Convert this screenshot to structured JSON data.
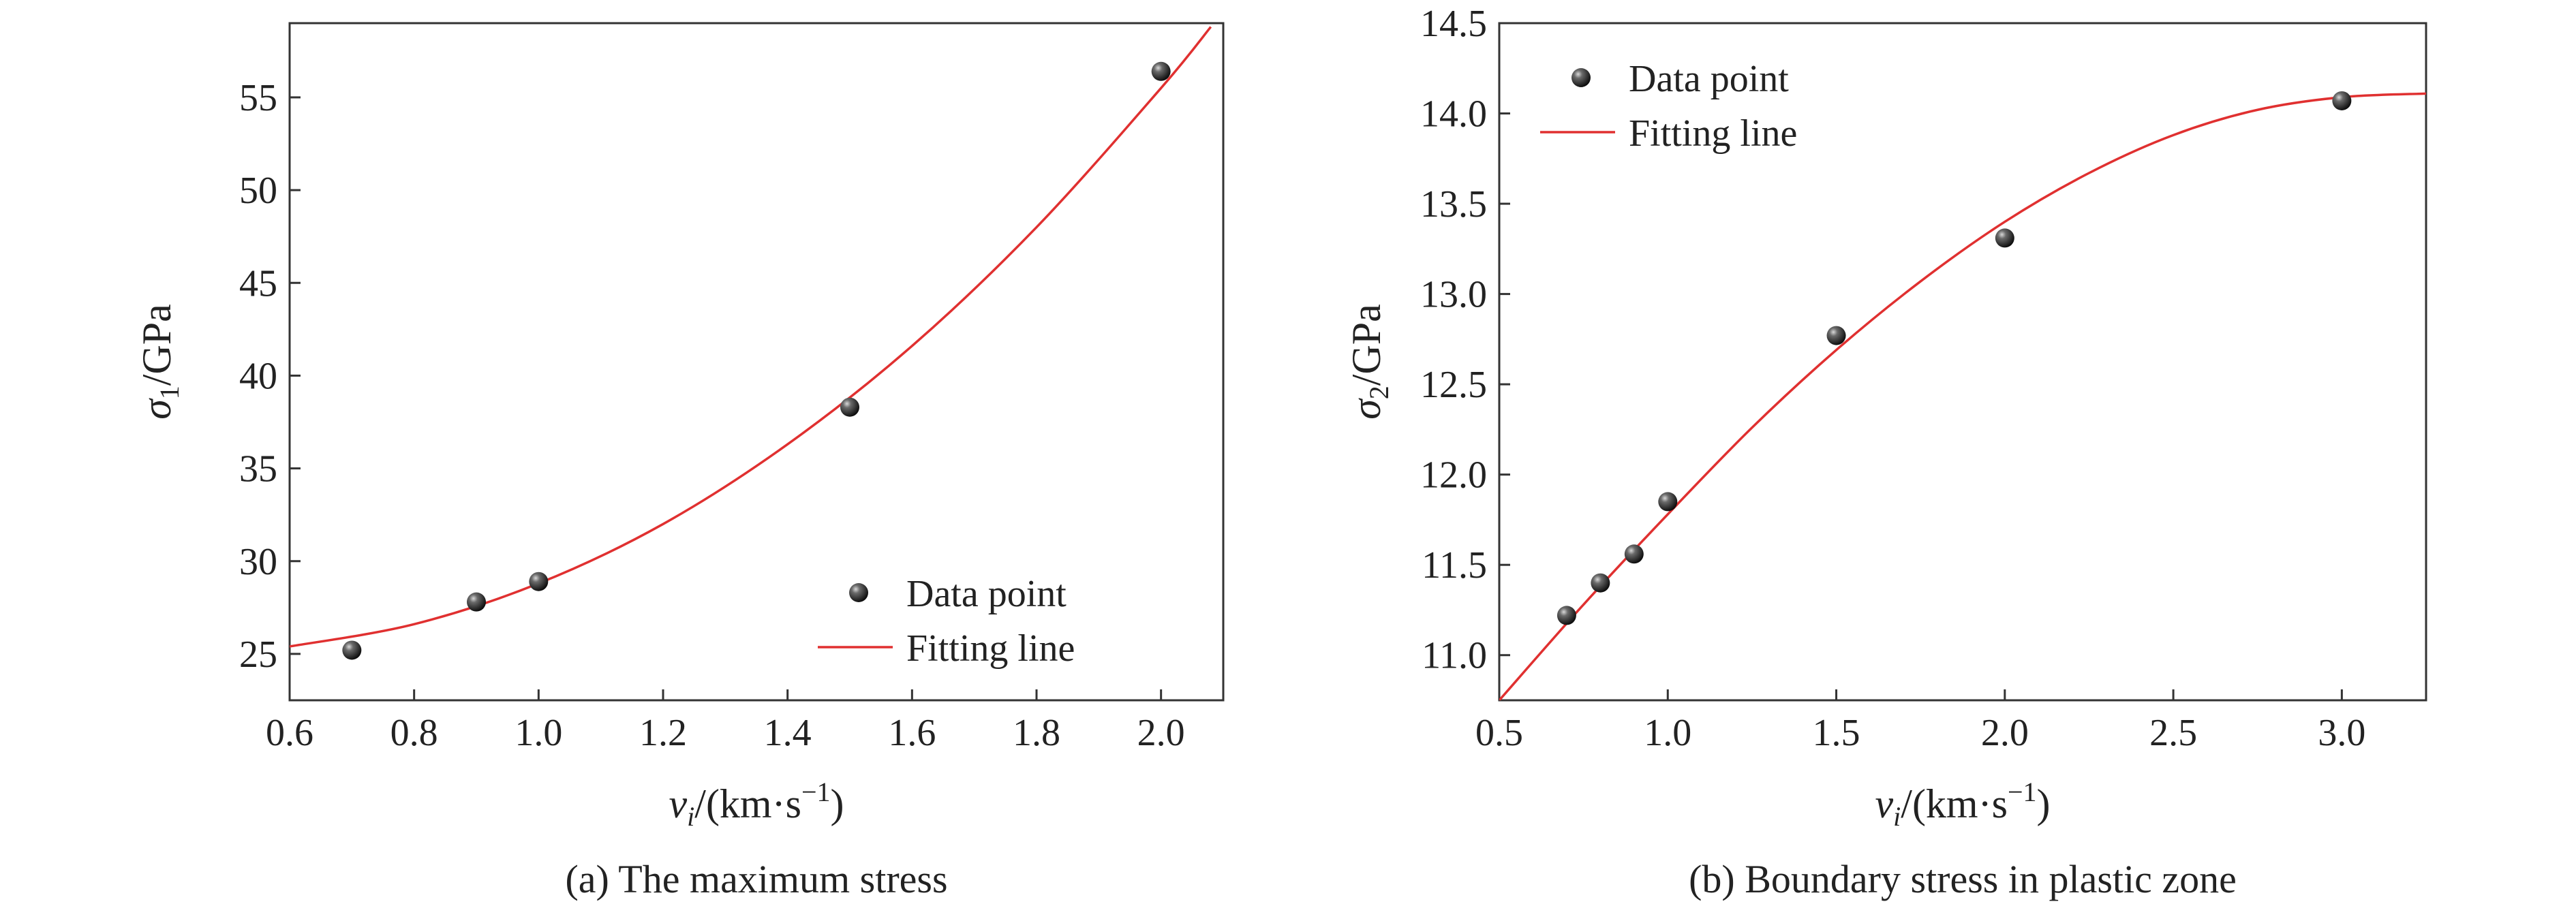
{
  "colors": {
    "fit_line": "#e03030",
    "marker": "#2a2a2a",
    "axis": "#333333",
    "text": "#222222"
  },
  "chart_data": [
    {
      "type": "scatter",
      "caption": "(a) The maximum stress",
      "xlabel": {
        "symbol": "v",
        "sub": "i",
        "rest": "/(km·s",
        "sup": "−1",
        "close": ")"
      },
      "ylabel": {
        "symbol": "σ",
        "sub": "1",
        "rest": "/GPa"
      },
      "xlim": [
        0.6,
        2.1
      ],
      "ylim": [
        22.5,
        59
      ],
      "xticks": [
        0.6,
        0.8,
        1.0,
        1.2,
        1.4,
        1.6,
        1.8,
        2.0
      ],
      "xtick_labels": [
        "0.6",
        "0.8",
        "1.0",
        "1.2",
        "1.4",
        "1.6",
        "1.8",
        "2.0"
      ],
      "yticks": [
        25,
        30,
        35,
        40,
        45,
        50,
        55
      ],
      "ytick_labels": [
        "25",
        "30",
        "35",
        "40",
        "45",
        "50",
        "55"
      ],
      "series": [
        {
          "name": "Data point",
          "kind": "scatter",
          "x": [
            0.7,
            0.9,
            1.0,
            1.5,
            2.0
          ],
          "y": [
            25.2,
            27.8,
            28.9,
            38.3,
            56.4
          ]
        },
        {
          "name": "Fitting line",
          "kind": "line",
          "x": [
            0.6,
            0.8,
            1.0,
            1.2,
            1.4,
            1.6,
            1.8,
            2.0,
            2.08
          ],
          "y": [
            25.4,
            26.6,
            28.8,
            32.0,
            36.3,
            41.6,
            48.0,
            55.5,
            58.8
          ]
        }
      ],
      "legend_position": "lower-right",
      "grid": false
    },
    {
      "type": "scatter",
      "caption": "(b) Boundary stress in plastic zone",
      "xlabel": {
        "symbol": "v",
        "sub": "i",
        "rest": "/(km·s",
        "sup": "−1",
        "close": ")"
      },
      "ylabel": {
        "symbol": "σ",
        "sub": "2",
        "rest": "/GPa"
      },
      "xlim": [
        0.5,
        3.25
      ],
      "ylim": [
        10.75,
        14.5
      ],
      "xticks": [
        0.5,
        1.0,
        1.5,
        2.0,
        2.5,
        3.0
      ],
      "xtick_labels": [
        "0.5",
        "1.0",
        "1.5",
        "2.0",
        "2.5",
        "3.0"
      ],
      "yticks": [
        11.0,
        11.5,
        12.0,
        12.5,
        13.0,
        13.5,
        14.0,
        14.5
      ],
      "ytick_labels": [
        "11.0",
        "11.5",
        "12.0",
        "12.5",
        "13.0",
        "13.5",
        "14.0",
        "14.5"
      ],
      "series": [
        {
          "name": "Data point",
          "kind": "scatter",
          "x": [
            0.7,
            0.8,
            0.9,
            1.0,
            1.5,
            2.0,
            3.0
          ],
          "y": [
            11.22,
            11.4,
            11.56,
            11.85,
            12.77,
            13.31,
            14.07
          ]
        },
        {
          "name": "Fitting line",
          "kind": "line",
          "x": [
            0.5,
            0.75,
            1.0,
            1.25,
            1.5,
            1.75,
            2.0,
            2.25,
            2.5,
            2.75,
            3.0,
            3.25
          ],
          "y": [
            10.75,
            11.28,
            11.78,
            12.26,
            12.69,
            13.07,
            13.4,
            13.67,
            13.88,
            14.02,
            14.09,
            14.11
          ]
        }
      ],
      "legend_position": "upper-left",
      "grid": false
    }
  ]
}
